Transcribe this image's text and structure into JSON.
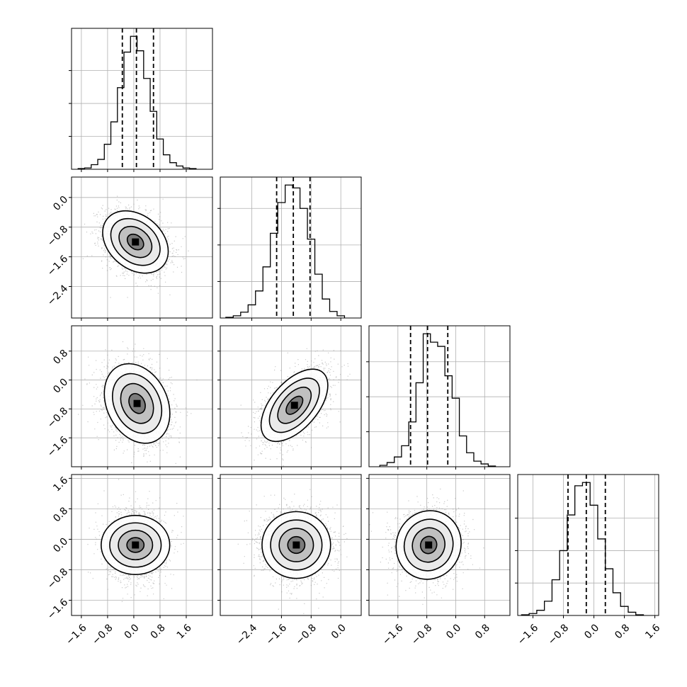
{
  "chart_data": {
    "type": "corner",
    "n_params": 4,
    "param_labels": [
      "",
      "",
      "",
      ""
    ],
    "grid": true,
    "quantiles": [
      0.16,
      0.5,
      0.84
    ],
    "diagonal": [
      {
        "param": 0,
        "xlim": [
          -1.9,
          2.4
        ],
        "bin_centers": [
          -1.6,
          -1.4,
          -1.2,
          -1.0,
          -0.8,
          -0.6,
          -0.4,
          -0.2,
          0.0,
          0.2,
          0.4,
          0.6,
          0.8,
          1.0,
          1.2,
          1.4,
          1.6,
          1.8
        ],
        "counts": [
          1,
          2,
          7,
          15,
          38,
          72,
          124,
          178,
          202,
          180,
          138,
          88,
          46,
          22,
          10,
          5,
          2,
          1
        ],
        "quantile_values": [
          -0.35,
          0.08,
          0.6
        ],
        "ytick_values": [
          50,
          100,
          150
        ]
      },
      {
        "param": 1,
        "xlim": [
          -3.25,
          0.55
        ],
        "bin_centers": [
          -3.0,
          -2.8,
          -2.6,
          -2.4,
          -2.2,
          -2.0,
          -1.8,
          -1.6,
          -1.4,
          -1.2,
          -1.0,
          -0.8,
          -0.6,
          -0.4,
          -0.2,
          0.0
        ],
        "counts": [
          1,
          3,
          8,
          18,
          37,
          70,
          116,
          158,
          182,
          178,
          150,
          108,
          60,
          26,
          9,
          3
        ],
        "quantile_values": [
          -1.73,
          -1.28,
          -0.83
        ],
        "ytick_values": [
          50,
          100,
          150
        ]
      },
      {
        "param": 2,
        "xlim": [
          -2.4,
          1.5
        ],
        "bin_centers": [
          -2.0,
          -1.8,
          -1.6,
          -1.4,
          -1.2,
          -1.0,
          -0.8,
          -0.6,
          -0.4,
          -0.2,
          0.0,
          0.2,
          0.4,
          0.6,
          0.8,
          1.0
        ],
        "counts": [
          2,
          6,
          14,
          30,
          64,
          120,
          190,
          178,
          172,
          130,
          98,
          44,
          20,
          8,
          4,
          1
        ],
        "quantile_values": [
          -1.25,
          -0.78,
          -0.22
        ],
        "ytick_values": [
          50,
          100,
          150
        ]
      },
      {
        "param": 3,
        "xlim": [
          -2.0,
          1.7
        ],
        "bin_centers": [
          -1.8,
          -1.6,
          -1.4,
          -1.2,
          -1.0,
          -0.8,
          -0.6,
          -0.4,
          -0.2,
          0.0,
          0.2,
          0.4,
          0.6,
          0.8,
          1.0,
          1.2
        ],
        "counts": [
          1,
          3,
          8,
          22,
          55,
          100,
          155,
          200,
          205,
          170,
          118,
          72,
          35,
          14,
          5,
          1
        ],
        "quantile_values": [
          -0.68,
          -0.2,
          0.3
        ],
        "ytick_values": [
          50,
          100,
          150
        ]
      }
    ],
    "scatter_panels": [
      {
        "row": 1,
        "col": 0,
        "mean": [
          0.05,
          -1.2
        ],
        "sd": [
          0.5,
          0.42
        ],
        "rho": -0.3
      },
      {
        "row": 2,
        "col": 0,
        "mean": [
          0.1,
          -0.65
        ],
        "sd": [
          0.5,
          0.55
        ],
        "rho": -0.25
      },
      {
        "row": 2,
        "col": 1,
        "mean": [
          -1.25,
          -0.7
        ],
        "sd": [
          0.45,
          0.5
        ],
        "rho": 0.55
      },
      {
        "row": 3,
        "col": 0,
        "mean": [
          0.05,
          -0.15
        ],
        "sd": [
          0.45,
          0.45
        ],
        "rho": 0.0
      },
      {
        "row": 3,
        "col": 1,
        "mean": [
          -1.2,
          -0.15
        ],
        "sd": [
          0.45,
          0.45
        ],
        "rho": 0.0
      },
      {
        "row": 3,
        "col": 2,
        "mean": [
          -0.75,
          -0.15
        ],
        "sd": [
          0.45,
          0.45
        ],
        "rho": 0.05
      }
    ],
    "contour_levels_sigma": [
      0.5,
      1.0,
      1.5,
      2.0
    ],
    "axes": {
      "x_ticks": [
        {
          "values": [
            -1.6,
            -0.8,
            0.0,
            0.8,
            1.6
          ],
          "labels": [
            "−1.6",
            "−0.8",
            "0.0",
            "0.8",
            "1.6"
          ]
        },
        {
          "values": [
            -2.4,
            -1.6,
            -0.8,
            0.0
          ],
          "labels": [
            "−2.4",
            "−1.6",
            "−0.8",
            "0.0"
          ]
        },
        {
          "values": [
            -1.6,
            -0.8,
            0.0,
            0.8
          ],
          "labels": [
            "−1.6",
            "−0.8",
            "0.0",
            "0.8"
          ]
        },
        {
          "values": [
            -1.6,
            -0.8,
            0.0,
            0.8,
            1.6
          ],
          "labels": [
            "−1.6",
            "−0.8",
            "0.0",
            "0.8",
            "1.6"
          ]
        }
      ],
      "y_ticks": [
        null,
        {
          "values": [
            0.0,
            -0.8,
            -1.6,
            -2.4
          ],
          "labels": [
            "0.0",
            "−0.8",
            "−1.6",
            "−2.4"
          ]
        },
        {
          "values": [
            0.8,
            0.0,
            -0.8,
            -1.6
          ],
          "labels": [
            "0.8",
            "0.0",
            "−0.8",
            "−1.6"
          ]
        },
        {
          "values": [
            1.6,
            0.8,
            0.0,
            -0.8,
            -1.6
          ],
          "labels": [
            "1.6",
            "0.8",
            "0.0",
            "−0.8",
            "−1.6"
          ]
        }
      ]
    }
  }
}
